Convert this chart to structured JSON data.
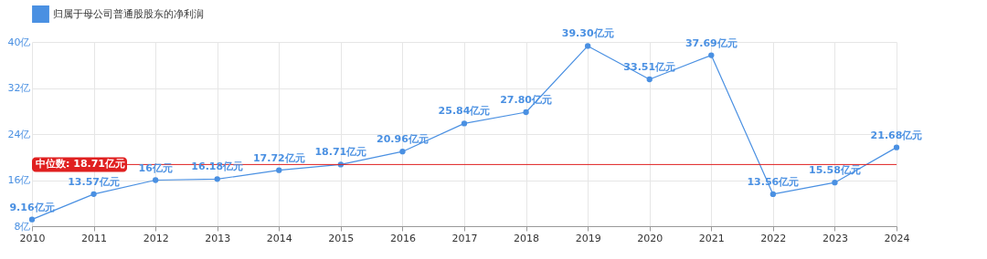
{
  "chart_data": {
    "type": "line",
    "categories": [
      "2010",
      "2011",
      "2012",
      "2013",
      "2014",
      "2015",
      "2016",
      "2017",
      "2018",
      "2019",
      "2020",
      "2021",
      "2022",
      "2023",
      "2024"
    ],
    "series": [
      {
        "name": "归属于母公司普通股股东的净利润",
        "color": "#4a90e2",
        "values": [
          9.16,
          13.57,
          16,
          16.18,
          17.72,
          18.71,
          20.96,
          25.84,
          27.8,
          39.3,
          33.51,
          37.69,
          13.56,
          15.58,
          21.68
        ],
        "value_labels": [
          "9.16亿元",
          "13.57亿元",
          "16亿元",
          "16.18亿元",
          "17.72亿元",
          "18.71亿元",
          "20.96亿元",
          "25.84亿元",
          "27.80亿元",
          "39.30亿元",
          "33.51亿元",
          "37.69亿元",
          "13.56亿元",
          "15.58亿元",
          "21.68亿元"
        ]
      }
    ],
    "ylim": [
      8,
      40
    ],
    "yticks": [
      {
        "value": 8,
        "label": "8亿"
      },
      {
        "value": 16,
        "label": "16亿"
      },
      {
        "value": 24,
        "label": "24亿"
      },
      {
        "value": 32,
        "label": "32亿"
      },
      {
        "value": 40,
        "label": "40亿"
      }
    ],
    "ref_lines": [
      {
        "axis": "y",
        "value": 18.71,
        "label": "中位数: 18.71亿元",
        "color": "#e02020"
      }
    ],
    "grid": true,
    "legend": "top",
    "marker": "circle"
  }
}
